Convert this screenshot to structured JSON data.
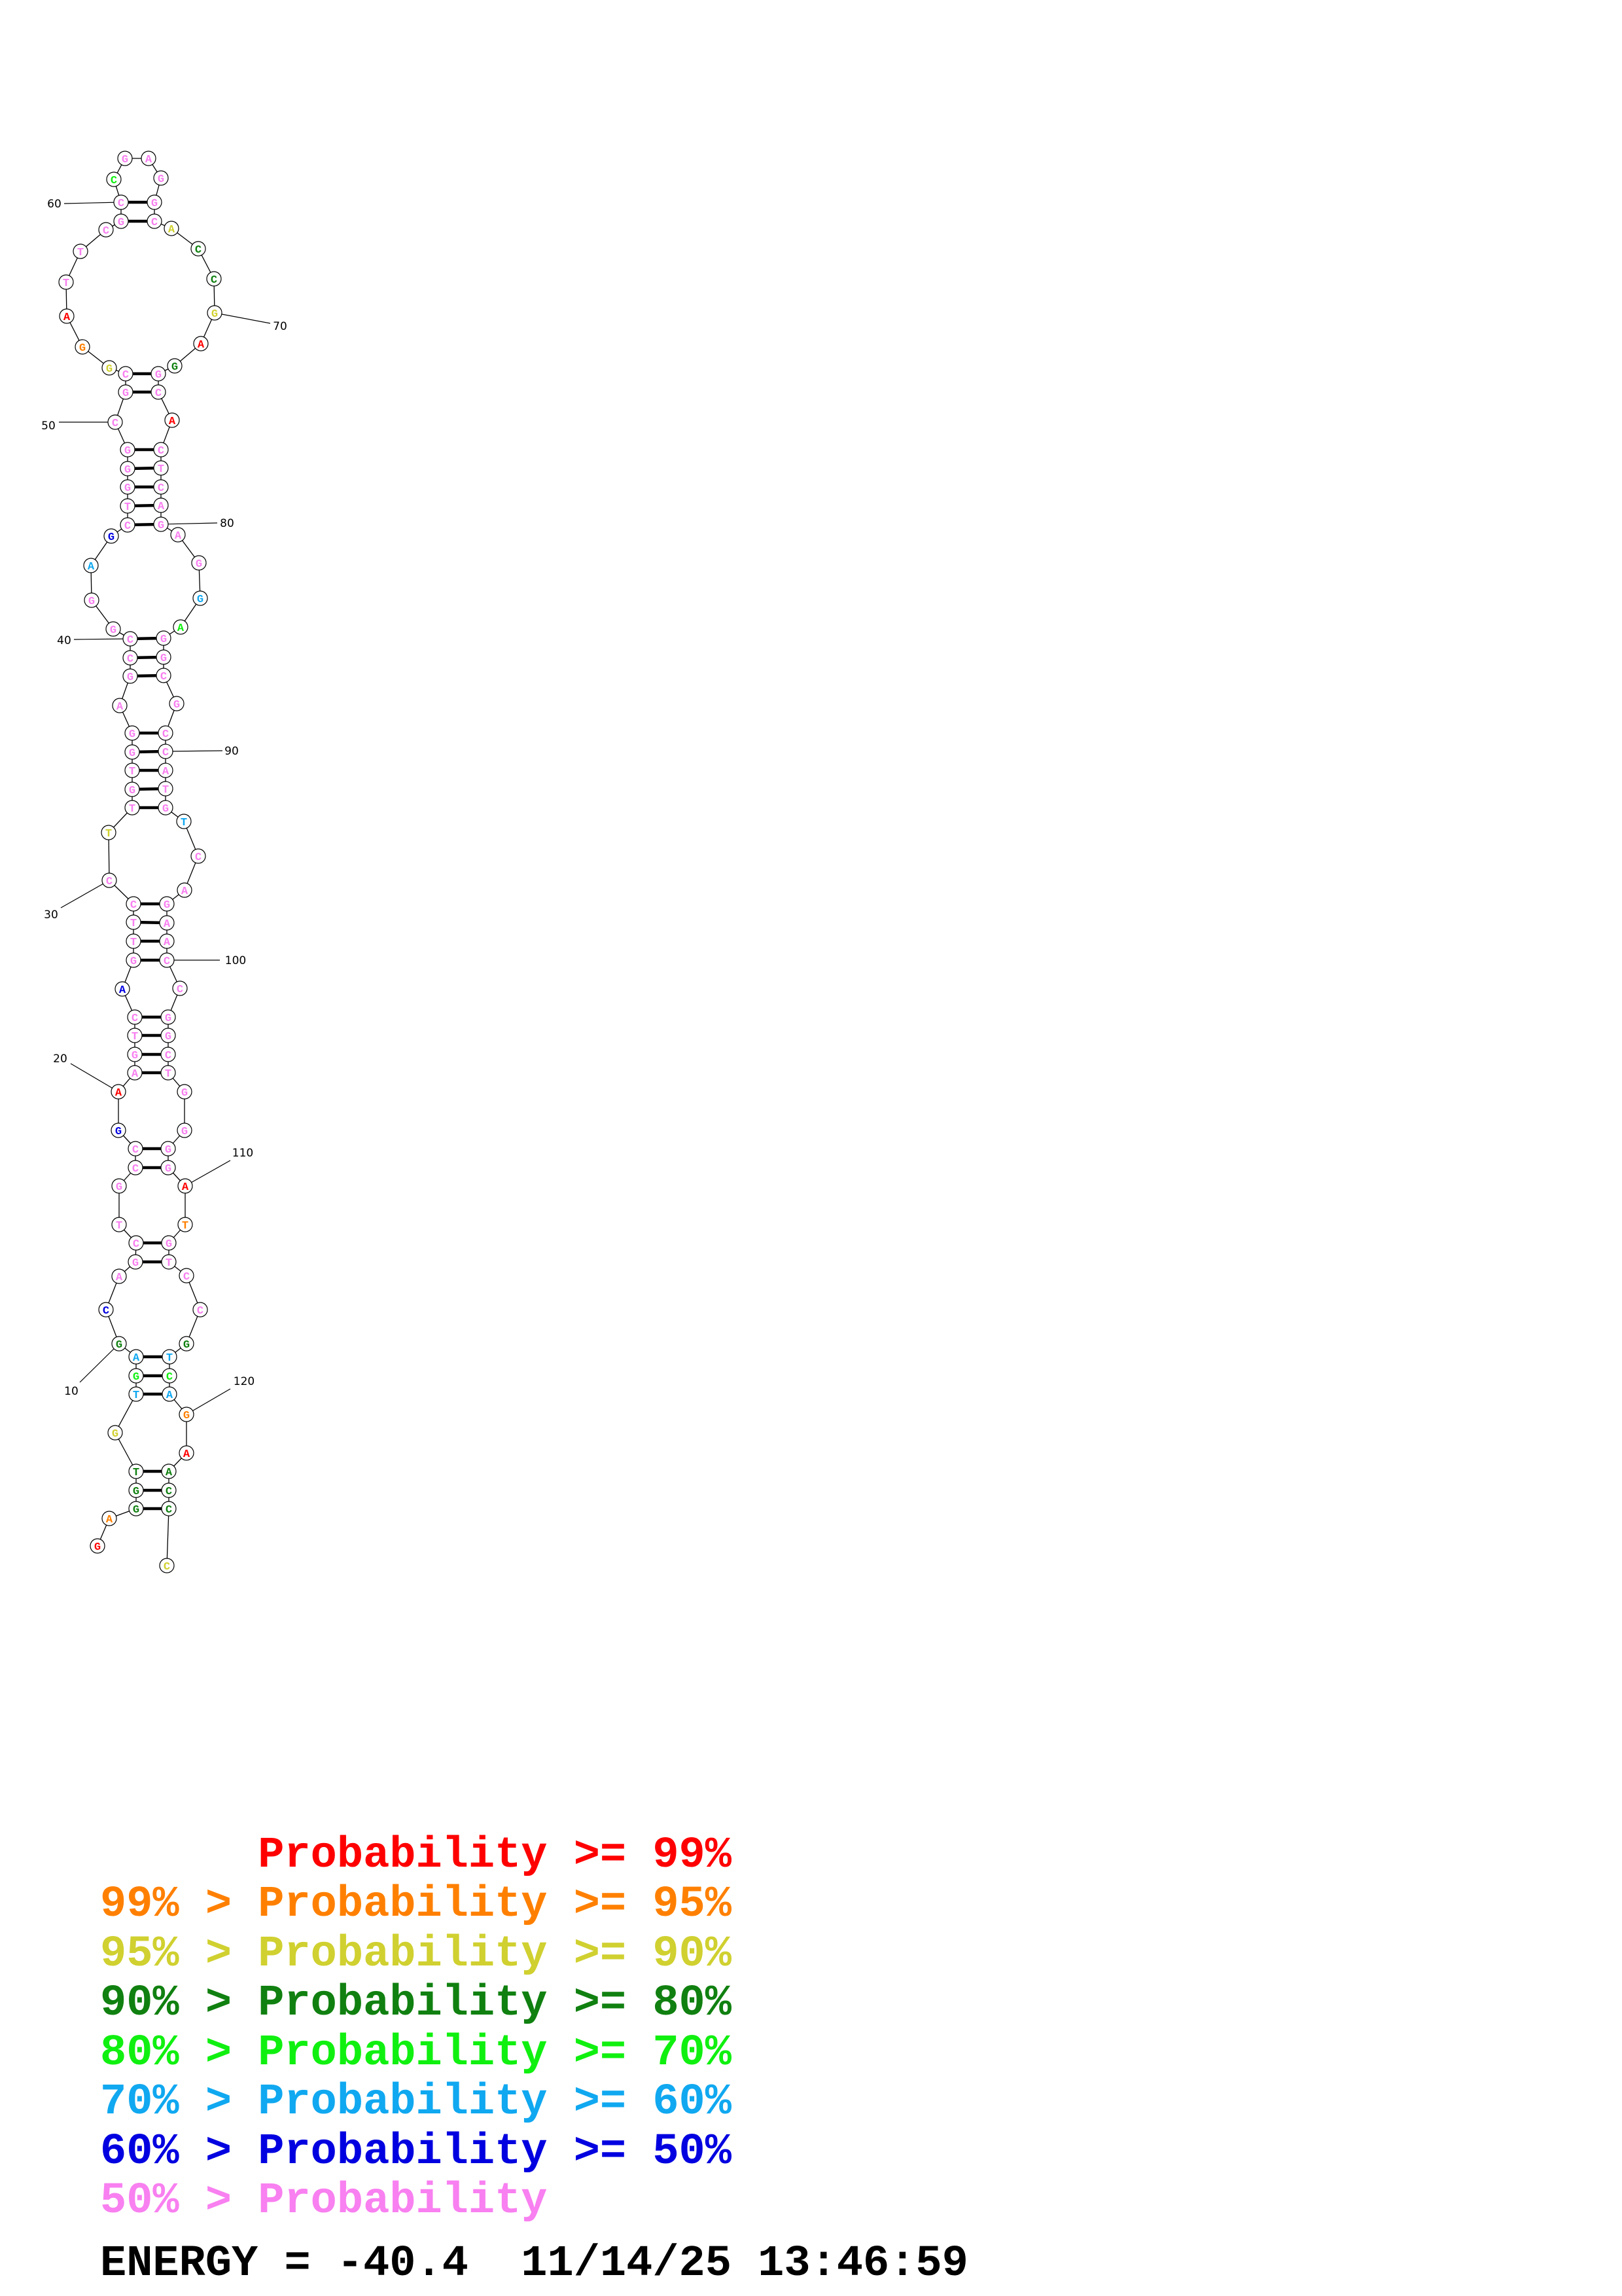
{
  "structure": {
    "sequence": "GAGGTGTGAGCAGCTGCCGAAGTCAGTTCCTTGTGGAGCCGGAGCTGGGCGCGGATTCGCCGAGGCACCGAGGCACTCAGAGGAGGCGCCATGTCAGAACCGGCTGGGGATGTCCGTCAGAACCC",
    "probability_class": [
      0,
      1,
      3,
      3,
      3,
      2,
      5,
      4,
      5,
      3,
      6,
      7,
      7,
      7,
      7,
      7,
      7,
      7,
      6,
      0,
      7,
      7,
      7,
      7,
      6,
      7,
      7,
      7,
      7,
      7,
      2,
      7,
      7,
      7,
      7,
      7,
      7,
      7,
      7,
      7,
      7,
      7,
      5,
      6,
      7,
      7,
      7,
      7,
      7,
      7,
      7,
      7,
      2,
      1,
      0,
      7,
      7,
      7,
      7,
      7,
      4,
      7,
      7,
      7,
      7,
      7,
      2,
      3,
      3,
      2,
      0,
      3,
      7,
      7,
      0,
      7,
      7,
      7,
      7,
      7,
      7,
      7,
      5,
      4,
      7,
      7,
      7,
      7,
      7,
      7,
      7,
      7,
      7,
      5,
      7,
      7,
      7,
      7,
      7,
      7,
      7,
      7,
      7,
      7,
      7,
      7,
      7,
      7,
      7,
      0,
      1,
      7,
      7,
      7,
      7,
      3,
      5,
      4,
      5,
      1,
      0,
      3,
      3,
      3,
      2
    ],
    "pairs": [
      [
        3,
        124
      ],
      [
        4,
        123
      ],
      [
        5,
        122
      ],
      [
        7,
        119
      ],
      [
        8,
        118
      ],
      [
        9,
        117
      ],
      [
        13,
        113
      ],
      [
        14,
        112
      ],
      [
        17,
        109
      ],
      [
        18,
        108
      ],
      [
        21,
        105
      ],
      [
        22,
        104
      ],
      [
        23,
        103
      ],
      [
        24,
        102
      ],
      [
        26,
        100
      ],
      [
        27,
        99
      ],
      [
        28,
        98
      ],
      [
        29,
        97
      ],
      [
        32,
        93
      ],
      [
        33,
        92
      ],
      [
        34,
        91
      ],
      [
        35,
        90
      ],
      [
        36,
        89
      ],
      [
        38,
        87
      ],
      [
        39,
        86
      ],
      [
        40,
        85
      ],
      [
        45,
        80
      ],
      [
        46,
        79
      ],
      [
        47,
        78
      ],
      [
        48,
        77
      ],
      [
        49,
        76
      ],
      [
        51,
        74
      ],
      [
        52,
        73
      ],
      [
        59,
        66
      ],
      [
        60,
        65
      ]
    ],
    "position_labels": [
      10,
      20,
      30,
      40,
      50,
      60,
      70,
      80,
      90,
      100,
      110,
      120
    ]
  },
  "legend": {
    "colors": [
      "#ff0000",
      "#ff8000",
      "#d0d030",
      "#108010",
      "#10f010",
      "#10a8f0",
      "#0000e0",
      "#f880f0"
    ],
    "rows": [
      {
        "text": "      Probability >= 99%",
        "color": "#ff0000"
      },
      {
        "text": "99% > Probability >= 95%",
        "color": "#ff8000"
      },
      {
        "text": "95% > Probability >= 90%",
        "color": "#d0d030"
      },
      {
        "text": "90% > Probability >= 80%",
        "color": "#108010"
      },
      {
        "text": "80% > Probability >= 70%",
        "color": "#10f010"
      },
      {
        "text": "70% > Probability >= 60%",
        "color": "#10a8f0"
      },
      {
        "text": "60% > Probability >= 50%",
        "color": "#0000e0"
      },
      {
        "text": "50% > Probability",
        "color": "#f880f0"
      }
    ]
  },
  "footer": {
    "energy_line": "ENERGY = -40.4  11/14/25 13:46:59"
  }
}
